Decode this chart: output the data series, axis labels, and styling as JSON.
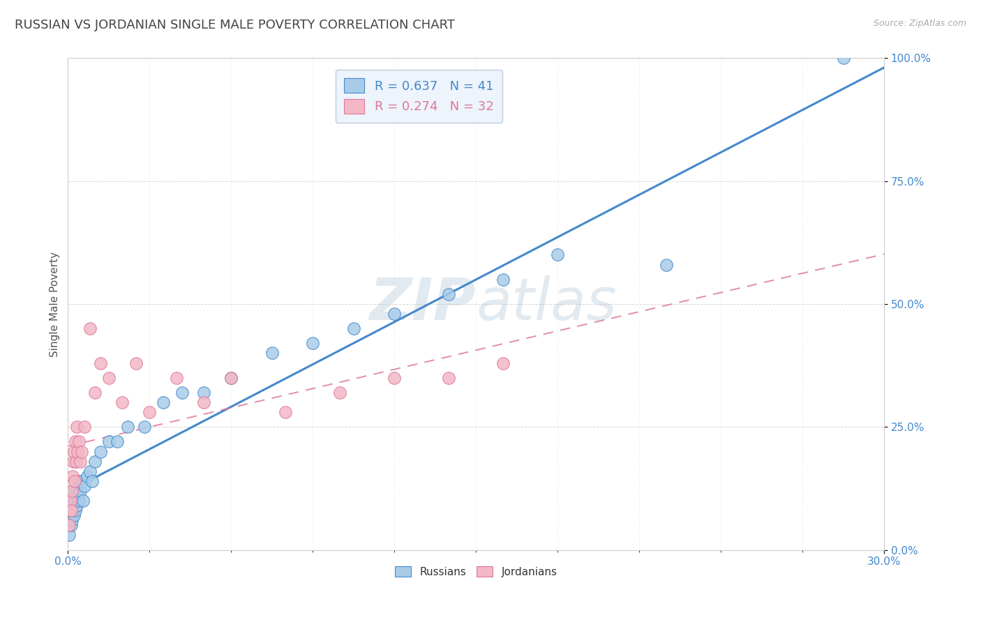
{
  "title": "RUSSIAN VS JORDANIAN SINGLE MALE POVERTY CORRELATION CHART",
  "source": "Source: ZipAtlas.com",
  "xlim": [
    0.0,
    30.0
  ],
  "ylim": [
    0.0,
    100.0
  ],
  "ylabel": "Single Male Poverty",
  "russian_R": 0.637,
  "russian_N": 41,
  "jordanian_R": 0.274,
  "jordanian_N": 32,
  "russian_color": "#a8cce8",
  "jordanian_color": "#f2b8c6",
  "russian_line_color": "#4488cc",
  "jordanian_line_color": "#dd7799",
  "background_color": "#ffffff",
  "grid_color": "#bbbbbb",
  "title_color": "#444444",
  "axis_label_color": "#555555",
  "tick_color": "#4488cc",
  "legend_box_color": "#eef4fb",
  "legend_border_color": "#bbccdd",
  "watermark_color": "#d0dde8",
  "russians_x": [
    0.05,
    0.1,
    0.12,
    0.15,
    0.15,
    0.18,
    0.2,
    0.22,
    0.25,
    0.28,
    0.3,
    0.32,
    0.35,
    0.38,
    0.4,
    0.45,
    0.5,
    0.55,
    0.6,
    0.7,
    0.8,
    0.9,
    1.0,
    1.2,
    1.5,
    1.8,
    2.2,
    2.8,
    3.5,
    4.2,
    5.0,
    6.0,
    7.5,
    9.0,
    10.5,
    12.0,
    14.0,
    16.0,
    18.0,
    22.0,
    28.5
  ],
  "russians_y": [
    3.0,
    8.0,
    5.0,
    10.0,
    6.0,
    8.0,
    12.0,
    7.0,
    10.0,
    8.0,
    12.0,
    9.0,
    11.0,
    14.0,
    10.0,
    12.0,
    14.0,
    10.0,
    13.0,
    15.0,
    16.0,
    14.0,
    18.0,
    20.0,
    22.0,
    22.0,
    25.0,
    25.0,
    30.0,
    32.0,
    32.0,
    35.0,
    40.0,
    42.0,
    45.0,
    48.0,
    52.0,
    55.0,
    60.0,
    58.0,
    100.0
  ],
  "jordanians_x": [
    0.05,
    0.08,
    0.1,
    0.12,
    0.15,
    0.18,
    0.2,
    0.22,
    0.25,
    0.28,
    0.3,
    0.32,
    0.35,
    0.4,
    0.45,
    0.5,
    0.6,
    0.8,
    1.0,
    1.2,
    1.5,
    2.0,
    2.5,
    3.0,
    4.0,
    5.0,
    6.0,
    8.0,
    10.0,
    12.0,
    14.0,
    16.0
  ],
  "jordanians_y": [
    5.0,
    8.0,
    10.0,
    8.0,
    12.0,
    15.0,
    18.0,
    20.0,
    14.0,
    22.0,
    18.0,
    25.0,
    20.0,
    22.0,
    18.0,
    20.0,
    25.0,
    45.0,
    32.0,
    38.0,
    35.0,
    30.0,
    38.0,
    28.0,
    35.0,
    30.0,
    35.0,
    28.0,
    32.0,
    35.0,
    35.0,
    38.0
  ]
}
